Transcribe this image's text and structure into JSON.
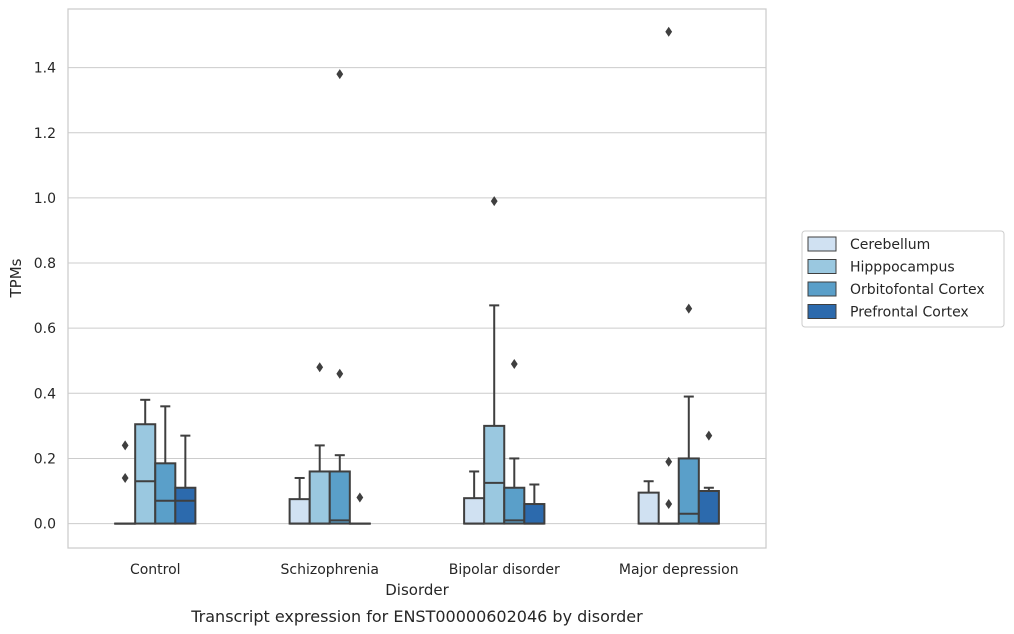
{
  "chart_data": {
    "type": "box",
    "caption": "Transcript expression for ENST00000602046 by disorder",
    "xlabel": "Disorder",
    "ylabel": "TPMs",
    "ylim": [
      -0.075,
      1.58
    ],
    "yticks": [
      0.0,
      0.2,
      0.4,
      0.6,
      0.8,
      1.0,
      1.2,
      1.4
    ],
    "ytick_labels": [
      "0.0",
      "0.2",
      "0.4",
      "0.6",
      "0.8",
      "1.0",
      "1.2",
      "1.4"
    ],
    "grid": true,
    "legend_position": "right",
    "categories": [
      "Control",
      "Schizophrenia",
      "Bipolar disorder",
      "Major depression"
    ],
    "series": [
      {
        "name": "Cerebellum",
        "color": "#d0e1f2",
        "boxes": [
          {
            "q1": 0.0,
            "median": 0.0,
            "q3": 0.0,
            "whisker_low": 0.0,
            "whisker_high": 0.0,
            "outliers": [
              0.24,
              0.14
            ]
          },
          {
            "q1": 0.0,
            "median": 0.0,
            "q3": 0.075,
            "whisker_low": 0.0,
            "whisker_high": 0.14,
            "outliers": []
          },
          {
            "q1": 0.0,
            "median": 0.0,
            "q3": 0.078,
            "whisker_low": 0.0,
            "whisker_high": 0.16,
            "outliers": []
          },
          {
            "q1": 0.0,
            "median": 0.0,
            "q3": 0.095,
            "whisker_low": 0.0,
            "whisker_high": 0.13,
            "outliers": []
          }
        ]
      },
      {
        "name": "Hipppocampus",
        "color": "#9ac8e0",
        "boxes": [
          {
            "q1": 0.0,
            "median": 0.13,
            "q3": 0.305,
            "whisker_low": 0.0,
            "whisker_high": 0.38,
            "outliers": []
          },
          {
            "q1": 0.0,
            "median": 0.0,
            "q3": 0.16,
            "whisker_low": 0.0,
            "whisker_high": 0.24,
            "outliers": [
              0.48
            ]
          },
          {
            "q1": 0.0,
            "median": 0.125,
            "q3": 0.3,
            "whisker_low": 0.0,
            "whisker_high": 0.67,
            "outliers": [
              0.99
            ]
          },
          {
            "q1": 0.0,
            "median": 0.0,
            "q3": 0.0,
            "whisker_low": 0.0,
            "whisker_high": 0.0,
            "outliers": [
              0.19,
              0.06,
              1.51
            ]
          }
        ]
      },
      {
        "name": "Orbitofontal Cortex",
        "color": "#5a9fc9",
        "boxes": [
          {
            "q1": 0.0,
            "median": 0.07,
            "q3": 0.185,
            "whisker_low": 0.0,
            "whisker_high": 0.36,
            "outliers": []
          },
          {
            "q1": 0.0,
            "median": 0.01,
            "q3": 0.16,
            "whisker_low": 0.0,
            "whisker_high": 0.21,
            "outliers": [
              0.46,
              1.38
            ]
          },
          {
            "q1": 0.0,
            "median": 0.01,
            "q3": 0.11,
            "whisker_low": 0.0,
            "whisker_high": 0.2,
            "outliers": [
              0.49
            ]
          },
          {
            "q1": 0.0,
            "median": 0.03,
            "q3": 0.2,
            "whisker_low": 0.0,
            "whisker_high": 0.39,
            "outliers": [
              0.66
            ]
          }
        ]
      },
      {
        "name": "Prefrontal Cortex",
        "color": "#2c6aad",
        "boxes": [
          {
            "q1": 0.0,
            "median": 0.07,
            "q3": 0.11,
            "whisker_low": 0.0,
            "whisker_high": 0.27,
            "outliers": []
          },
          {
            "q1": 0.0,
            "median": 0.0,
            "q3": 0.0,
            "whisker_low": 0.0,
            "whisker_high": 0.0,
            "outliers": [
              0.08
            ]
          },
          {
            "q1": 0.0,
            "median": 0.0,
            "q3": 0.06,
            "whisker_low": 0.0,
            "whisker_high": 0.12,
            "outliers": []
          },
          {
            "q1": 0.0,
            "median": 0.0,
            "q3": 0.1,
            "whisker_low": 0.0,
            "whisker_high": 0.11,
            "outliers": [
              0.27
            ]
          }
        ]
      }
    ]
  }
}
